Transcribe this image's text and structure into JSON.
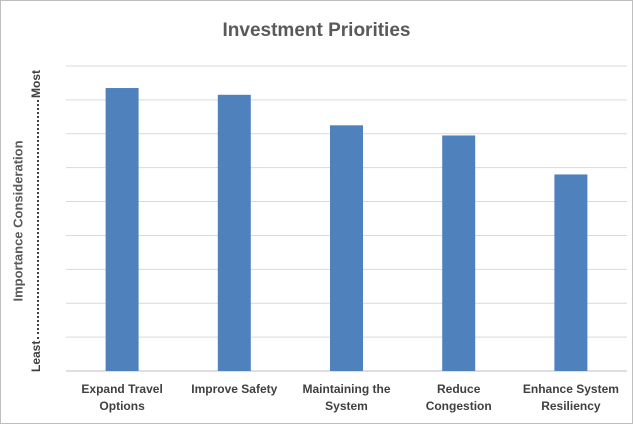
{
  "chart_data": {
    "type": "bar",
    "title": "Investment Priorities",
    "ylabel": "Importance Consideration",
    "ylabel_low": "Least",
    "ylabel_high": "Most",
    "categories": [
      [
        "Expand Travel",
        "Options"
      ],
      [
        "Improve Safety"
      ],
      [
        "Maintaining the",
        "System"
      ],
      [
        "Reduce",
        "Congestion"
      ],
      [
        "Enhance System",
        "Resiliency"
      ]
    ],
    "values": [
      8.35,
      8.15,
      7.25,
      6.95,
      5.8
    ],
    "ylim": [
      0,
      9
    ],
    "grid": true,
    "bar_color": "#4f81bd",
    "grid_color": "#d9d9d9"
  }
}
